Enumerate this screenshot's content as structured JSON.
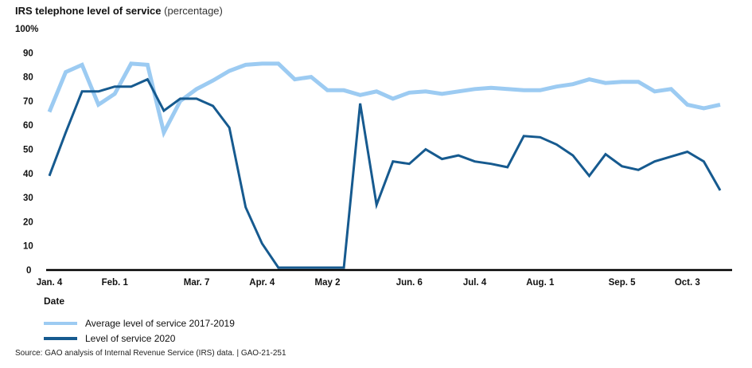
{
  "chart_data": {
    "type": "line",
    "title": "IRS telephone level of service",
    "title_unit": "(percentage)",
    "xlabel": "Date",
    "ylabel": "",
    "ylim": [
      0,
      100
    ],
    "y_ticks": [
      "0",
      "10",
      "20",
      "30",
      "40",
      "50",
      "60",
      "70",
      "80",
      "90",
      "100%"
    ],
    "x_tick_labels": [
      {
        "label": "Jan. 4",
        "week": 0
      },
      {
        "label": "Feb. 1",
        "week": 4
      },
      {
        "label": "Mar. 7",
        "week": 9
      },
      {
        "label": "Apr. 4",
        "week": 13
      },
      {
        "label": "May 2",
        "week": 17
      },
      {
        "label": "Jun. 6",
        "week": 22
      },
      {
        "label": "Jul. 4",
        "week": 26
      },
      {
        "label": "Aug. 1",
        "week": 30
      },
      {
        "label": "Sep. 5",
        "week": 35
      },
      {
        "label": "Oct. 3",
        "week": 39
      }
    ],
    "x_weeks": 42,
    "series": [
      {
        "name": "Average level of service 2017-2019",
        "color": "#9ccbf2",
        "values": [
          65.5,
          82,
          85,
          68.5,
          73,
          85.5,
          85,
          57,
          70,
          75,
          78.5,
          82.5,
          85,
          85.5,
          85.5,
          79,
          80,
          74.5,
          74.5,
          72.5,
          74,
          71,
          73.5,
          74,
          73,
          74,
          75,
          75.5,
          75,
          74.5,
          74.5,
          76,
          77,
          79,
          77.5,
          78,
          78,
          74,
          75,
          68.5,
          67,
          68.5
        ]
      },
      {
        "name": "Level of service 2020",
        "color": "#165a8f",
        "values": [
          39,
          57,
          74,
          74,
          76,
          76,
          79,
          66,
          71,
          71,
          68,
          59,
          26,
          11,
          1,
          1,
          1,
          1,
          1,
          69,
          27,
          45,
          44,
          50,
          46,
          47.5,
          45,
          44,
          42.6,
          55.5,
          55,
          52,
          47.5,
          39,
          48,
          43,
          41.5,
          45,
          47,
          49,
          45,
          33
        ]
      }
    ],
    "legend_position": "bottom-left",
    "grid": false
  },
  "source": "Source: GAO analysis of Internal Revenue Service (IRS) data.  |  GAO-21-251"
}
